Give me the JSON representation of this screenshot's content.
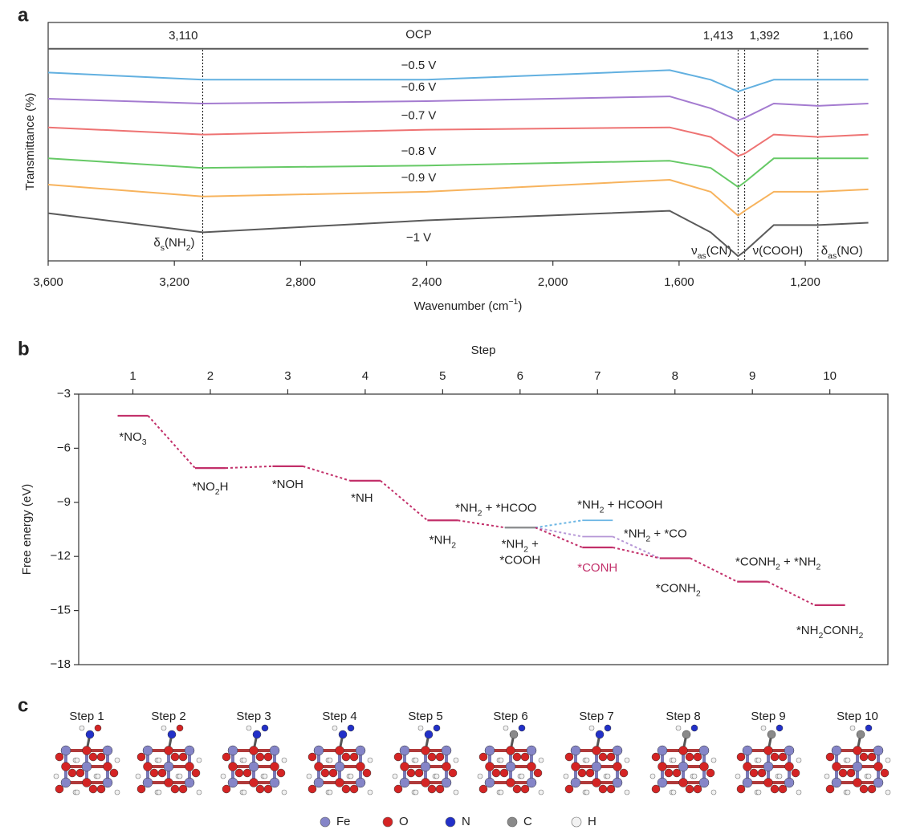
{
  "panels": [
    "a",
    "b",
    "c"
  ],
  "chart_data": [
    {
      "type": "line",
      "ylabel": "Transmittance (%)",
      "xlabel": [
        {
          "t": "Wavenumber (cm"
        },
        {
          "t": "−1",
          "sup": true
        },
        {
          "t": ")"
        }
      ],
      "x": [
        3600,
        3110,
        2400,
        1630,
        1500,
        1413,
        1392,
        1300,
        1160,
        1000
      ],
      "xlim": [
        3600,
        938
      ],
      "xticks": [
        {
          "value": 3600,
          "label": "3,600"
        },
        {
          "value": 3200,
          "label": "3,200"
        },
        {
          "value": 2800,
          "label": "2,800"
        },
        {
          "value": 2400,
          "label": "2,400"
        },
        {
          "value": 2000,
          "label": "2,000"
        },
        {
          "value": 1600,
          "label": "1,600"
        },
        {
          "value": 1200,
          "label": "1,200"
        }
      ],
      "ylim": [
        0,
        10
      ],
      "series": [
        {
          "name": "OCP",
          "color": "#5a5a5a",
          "values": [
            8.9,
            8.9,
            8.9,
            8.9,
            8.9,
            8.9,
            8.9,
            8.9,
            8.9,
            8.9
          ]
        },
        {
          "name": "−0.5 V",
          "color": "#62b0e0",
          "values": [
            7.9,
            7.6,
            7.6,
            8.0,
            7.6,
            7.1,
            7.2,
            7.6,
            7.6,
            7.6
          ]
        },
        {
          "name": "−0.6 V",
          "color": "#a47bd0",
          "values": [
            6.8,
            6.6,
            6.7,
            6.9,
            6.4,
            5.9,
            6.0,
            6.6,
            6.5,
            6.6
          ]
        },
        {
          "name": "−0.7 V",
          "color": "#ee7373",
          "values": [
            5.6,
            5.3,
            5.5,
            5.6,
            5.2,
            4.4,
            4.5,
            5.3,
            5.2,
            5.3
          ]
        },
        {
          "name": "−0.8 V",
          "color": "#66c966",
          "values": [
            4.3,
            3.9,
            4.0,
            4.2,
            3.9,
            3.1,
            3.3,
            4.3,
            4.3,
            4.3
          ]
        },
        {
          "name": "−0.9 V",
          "color": "#f7b35d",
          "values": [
            3.2,
            2.7,
            2.9,
            3.4,
            2.9,
            1.9,
            2.1,
            2.9,
            2.9,
            3.0
          ]
        },
        {
          "name": "−1 V",
          "color": "#5a5a5a",
          "values": [
            2.0,
            1.2,
            1.7,
            2.1,
            1.2,
            0.2,
            0.4,
            1.5,
            1.5,
            1.6
          ]
        }
      ],
      "markers": [
        {
          "value": 3110,
          "label": "3,110"
        },
        {
          "value": 1413,
          "label": "1,413"
        },
        {
          "value": 1392,
          "label": "1,392"
        },
        {
          "value": 1160,
          "label": "1,160"
        }
      ],
      "annotations": [
        [
          {
            "t": "δ"
          },
          {
            "t": "s",
            "sub": true
          },
          {
            "t": "(NH"
          },
          {
            "t": "2",
            "sub": true
          },
          {
            "t": ")"
          }
        ],
        [
          {
            "t": "ν"
          },
          {
            "t": "as",
            "sub": true
          },
          {
            "t": "(CN)"
          }
        ],
        [
          {
            "t": "ν"
          },
          {
            "t": "(COOH)"
          }
        ],
        [
          {
            "t": "δ"
          },
          {
            "t": "as",
            "sub": true
          },
          {
            "t": "(NO)"
          }
        ]
      ]
    },
    {
      "type": "energy-profile",
      "xlabel": "Step",
      "ylabel": "Free energy (eV)",
      "x": [
        1,
        2,
        3,
        4,
        5,
        6,
        7,
        8,
        9,
        10
      ],
      "xlim": [
        0.3,
        10.75
      ],
      "xticks": [
        1,
        2,
        3,
        4,
        5,
        6,
        7,
        8,
        9,
        10
      ],
      "ylim": [
        -18,
        -3
      ],
      "yticks": [
        {
          "value": -3,
          "label": "−3"
        },
        {
          "value": -6,
          "label": "−6"
        },
        {
          "value": -9,
          "label": "−9"
        },
        {
          "value": -12,
          "label": "−12"
        },
        {
          "value": -15,
          "label": "−15"
        },
        {
          "value": -18,
          "label": "−18"
        }
      ],
      "series": [
        {
          "color": "#c2306a",
          "label_color": "#222222",
          "level_colors": [
            "#c2306a",
            "#c2306a",
            "#c2306a",
            "#c2306a",
            "#c2306a",
            "#8c8c8c",
            "#c2306a",
            "#c2306a",
            "#c2306a",
            "#c2306a"
          ],
          "values": [
            -4.2,
            -7.1,
            -7.0,
            -7.8,
            -10.0,
            -10.4,
            -11.5,
            -12.1,
            -13.4,
            -14.7
          ],
          "point_labels": [
            [
              {
                "t": "*NO"
              },
              {
                "t": "3",
                "sub": true
              }
            ],
            [
              {
                "t": "*NO"
              },
              {
                "t": "2",
                "sub": true
              },
              {
                "t": "H"
              }
            ],
            [
              {
                "t": "*NOH"
              }
            ],
            [
              {
                "t": "*NH"
              }
            ],
            [
              {
                "t": "*NH"
              },
              {
                "t": "2",
                "sub": true
              }
            ],
            [
              {
                "t": "*NH"
              },
              {
                "t": "2",
                "sub": true
              },
              {
                "t": " +"
              },
              {
                "t": "*COOH",
                "br": true
              }
            ],
            [
              {
                "t": "*CONH",
                "color": "#c2306a"
              }
            ],
            [
              {
                "t": "*CONH"
              },
              {
                "t": "2",
                "sub": true
              }
            ],
            [
              {
                "t": "*CONH"
              },
              {
                "t": "2",
                "sub": true
              },
              {
                "t": " + *NH"
              },
              {
                "t": "2",
                "sub": true
              }
            ],
            [
              {
                "t": "*NH"
              },
              {
                "t": "2",
                "sub": true
              },
              {
                "t": "CONH"
              },
              {
                "t": "2",
                "sub": true
              }
            ]
          ]
        },
        {
          "color": "#6cb6e4",
          "values": [
            null,
            null,
            null,
            null,
            null,
            -10.4,
            -10.0,
            null,
            null,
            null
          ],
          "point_labels": [
            null,
            null,
            null,
            null,
            null,
            [
              {
                "t": "*NH"
              },
              {
                "t": "2",
                "sub": true
              },
              {
                "t": " + *HCOO"
              }
            ],
            [
              {
                "t": "*NH"
              },
              {
                "t": "2",
                "sub": true
              },
              {
                "t": " + HCOOH"
              }
            ],
            null,
            null,
            null
          ]
        },
        {
          "color": "#b697d6",
          "values": [
            null,
            null,
            null,
            null,
            null,
            -10.4,
            -10.9,
            -12.1,
            null,
            null
          ],
          "point_labels": [
            null,
            null,
            null,
            null,
            null,
            null,
            [
              {
                "t": "*NH"
              },
              {
                "t": "2",
                "sub": true
              },
              {
                "t": " + *CO"
              }
            ],
            null,
            null,
            null
          ]
        }
      ]
    }
  ],
  "structures": {
    "steps": [
      "Step 1",
      "Step 2",
      "Step 3",
      "Step 4",
      "Step 5",
      "Step 6",
      "Step 7",
      "Step 8",
      "Step 9",
      "Step 10"
    ],
    "legend": [
      {
        "label": "Fe",
        "color": "#8585c8"
      },
      {
        "label": "O",
        "color": "#d42424"
      },
      {
        "label": "N",
        "color": "#2230c8"
      },
      {
        "label": "C",
        "color": "#8a8a8a"
      },
      {
        "label": "H",
        "color": "#f2f2f2"
      }
    ]
  }
}
